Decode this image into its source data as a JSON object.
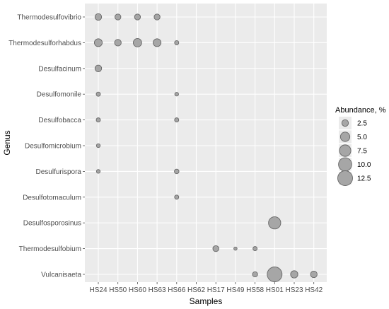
{
  "chart_data": {
    "type": "bubble",
    "title": "",
    "xlabel": "Samples",
    "ylabel": "Genus",
    "x_categories": [
      "HS24",
      "HS50",
      "HS60",
      "HS63",
      "HS66",
      "HS62",
      "HS17",
      "HS49",
      "HS58",
      "HS01",
      "HS23",
      "HS42"
    ],
    "y_categories": [
      "Thermodesulfovibrio",
      "Thermodesulforhabdus",
      "Desulfacinum",
      "Desulfomonile",
      "Desulfobacca",
      "Desulfomicrobium",
      "Desulfurispora",
      "Desulfotomaculum",
      "Desulfosporosinus",
      "Thermodesulfobium",
      "Vulcanisaeta"
    ],
    "points": [
      {
        "genus": "Thermodesulfovibrio",
        "sample": "HS24",
        "abundance": 2.5
      },
      {
        "genus": "Thermodesulfovibrio",
        "sample": "HS50",
        "abundance": 2.0
      },
      {
        "genus": "Thermodesulfovibrio",
        "sample": "HS60",
        "abundance": 2.0
      },
      {
        "genus": "Thermodesulfovibrio",
        "sample": "HS63",
        "abundance": 2.0
      },
      {
        "genus": "Thermodesulforhabdus",
        "sample": "HS24",
        "abundance": 3.5
      },
      {
        "genus": "Thermodesulforhabdus",
        "sample": "HS50",
        "abundance": 2.5
      },
      {
        "genus": "Thermodesulforhabdus",
        "sample": "HS60",
        "abundance": 4.0
      },
      {
        "genus": "Thermodesulforhabdus",
        "sample": "HS63",
        "abundance": 3.5
      },
      {
        "genus": "Thermodesulforhabdus",
        "sample": "HS66",
        "abundance": 1.0
      },
      {
        "genus": "Desulfacinum",
        "sample": "HS24",
        "abundance": 2.5
      },
      {
        "genus": "Desulfomonile",
        "sample": "HS24",
        "abundance": 1.0
      },
      {
        "genus": "Desulfomonile",
        "sample": "HS66",
        "abundance": 0.8
      },
      {
        "genus": "Desulfobacca",
        "sample": "HS24",
        "abundance": 1.0
      },
      {
        "genus": "Desulfobacca",
        "sample": "HS66",
        "abundance": 1.0
      },
      {
        "genus": "Desulfomicrobium",
        "sample": "HS24",
        "abundance": 0.8
      },
      {
        "genus": "Desulfurispora",
        "sample": "HS24",
        "abundance": 0.8
      },
      {
        "genus": "Desulfurispora",
        "sample": "HS66",
        "abundance": 1.2
      },
      {
        "genus": "Desulfotomaculum",
        "sample": "HS66",
        "abundance": 1.0
      },
      {
        "genus": "Desulfosporosinus",
        "sample": "HS01",
        "abundance": 8.5
      },
      {
        "genus": "Thermodesulfobium",
        "sample": "HS17",
        "abundance": 2.0
      },
      {
        "genus": "Thermodesulfobium",
        "sample": "HS49",
        "abundance": 0.6
      },
      {
        "genus": "Thermodesulfobium",
        "sample": "HS58",
        "abundance": 1.0
      },
      {
        "genus": "Vulcanisaeta",
        "sample": "HS58",
        "abundance": 1.5
      },
      {
        "genus": "Vulcanisaeta",
        "sample": "HS01",
        "abundance": 12.5
      },
      {
        "genus": "Vulcanisaeta",
        "sample": "HS23",
        "abundance": 3.0
      },
      {
        "genus": "Vulcanisaeta",
        "sample": "HS42",
        "abundance": 2.5
      }
    ],
    "legend": {
      "title": "Abundance, %",
      "values": [
        2.5,
        5.0,
        7.5,
        10.0,
        12.5
      ],
      "labels": [
        "2.5",
        "5.0",
        "7.5",
        "10.0",
        "12.5"
      ],
      "position": "right"
    },
    "point_fill": "#a6a6a6",
    "point_stroke": "#666666",
    "panel_background": "#ebebeb",
    "grid": true
  }
}
